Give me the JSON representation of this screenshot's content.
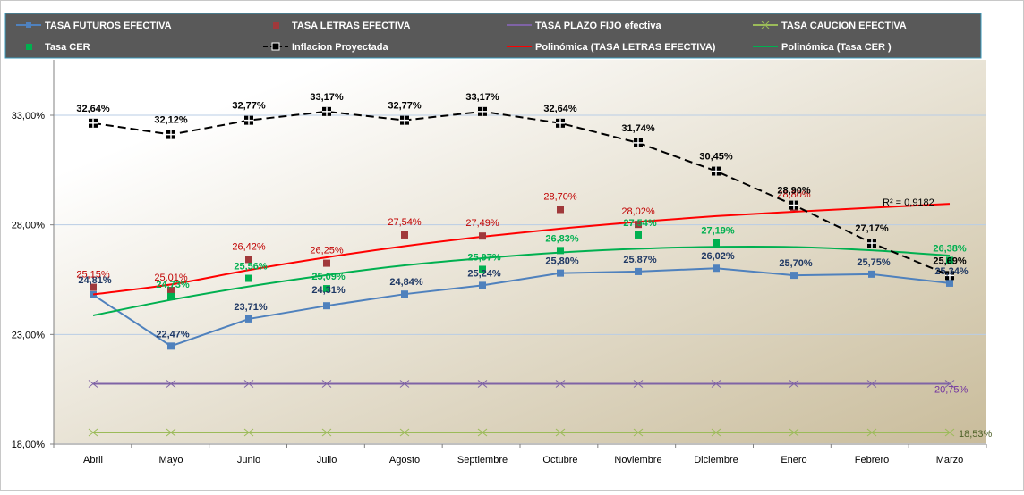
{
  "colors": {
    "futuros": "#4f81bd",
    "letras": "#a0393b",
    "plazo": "#7f63a6",
    "caucion": "#9bbb59",
    "cer": "#00b050",
    "inflacion": "#000000",
    "poly_letras": "#ff0000",
    "poly_cer": "#00b050",
    "label_futuros": "#1f3864",
    "label_letras": "#c00000",
    "label_cer": "#00b050",
    "label_plazo": "#7030a0",
    "label_caucion": "#4f6228",
    "legend_bg": "#595959",
    "plot_bg_light": "#ffffff",
    "plot_bg_dark": "#c9bc9b"
  },
  "chart_data": {
    "type": "line",
    "title": "",
    "xlabel": "",
    "ylabel": "",
    "categories": [
      "Abril",
      "Mayo",
      "Junio",
      "Julio",
      "Agosto",
      "Septiembre",
      "Octubre",
      "Noviembre",
      "Diciembre",
      "Enero",
      "Febrero",
      "Marzo"
    ],
    "y_ticks": [
      "33,00%",
      "28,00%",
      "23,00%",
      "18,00%"
    ],
    "ylim": [
      18,
      35
    ],
    "grid": true,
    "legend_position": "top",
    "r2_label": "R² = 0,9182",
    "legend": [
      {
        "key": "futuros",
        "label": "TASA  FUTUROS EFECTIVA"
      },
      {
        "key": "letras",
        "label": "TASA LETRAS EFECTIVA"
      },
      {
        "key": "plazo",
        "label": "TASA PLAZO FIJO efectiva"
      },
      {
        "key": "caucion",
        "label": "TASA CAUCION EFECTIVA"
      },
      {
        "key": "cer",
        "label": "Tasa CER"
      },
      {
        "key": "inflacion",
        "label": "Inflacion Proyectada"
      },
      {
        "key": "poly_letras",
        "label": "Polinómica (TASA LETRAS EFECTIVA)"
      },
      {
        "key": "poly_cer",
        "label": "Polinómica (Tasa CER )"
      }
    ],
    "series": [
      {
        "key": "futuros",
        "name": "TASA  FUTUROS EFECTIVA",
        "values": [
          24.81,
          22.47,
          23.71,
          24.31,
          24.84,
          25.24,
          25.8,
          25.87,
          26.02,
          25.7,
          25.75,
          25.34
        ],
        "labels": [
          "24,81%",
          "22,47%",
          "23,71%",
          "24,31%",
          "24,84%",
          "25,24%",
          "25,80%",
          "25,87%",
          "26,02%",
          "25,70%",
          "25,75%",
          "25,34%"
        ]
      },
      {
        "key": "letras",
        "name": "TASA LETRAS EFECTIVA",
        "values": [
          25.15,
          25.01,
          26.42,
          26.25,
          27.54,
          27.49,
          28.7,
          28.02,
          null,
          28.8,
          null,
          null
        ],
        "labels": [
          "25,15%",
          "25,01%",
          "26,42%",
          "26,25%",
          "27,54%",
          "27,49%",
          "28,70%",
          "28,02%",
          null,
          "28,80%",
          null,
          null
        ]
      },
      {
        "key": "cer",
        "name": "Tasa CER",
        "values": [
          null,
          24.73,
          25.56,
          25.09,
          null,
          25.97,
          26.83,
          27.54,
          27.19,
          null,
          null,
          26.38
        ],
        "labels": [
          null,
          "24,73%",
          "25,56%",
          "25,09%",
          null,
          "25,97%",
          "26,83%",
          "27,54%",
          "27,19%",
          null,
          null,
          "26,38%"
        ]
      },
      {
        "key": "inflacion",
        "name": "Inflacion Proyectada",
        "values": [
          32.64,
          32.12,
          32.77,
          33.17,
          32.77,
          33.17,
          32.64,
          31.74,
          30.45,
          28.9,
          27.17,
          25.69
        ],
        "labels": [
          "32,64%",
          "32,12%",
          "32,77%",
          "33,17%",
          "32,77%",
          "33,17%",
          "32,64%",
          "31,74%",
          "30,45%",
          "28,90%",
          "27,17%",
          "25,69%"
        ]
      },
      {
        "key": "plazo",
        "name": "TASA PLAZO FIJO efectiva",
        "values": [
          20.75,
          20.75,
          20.75,
          20.75,
          20.75,
          20.75,
          20.75,
          20.75,
          20.75,
          20.75,
          20.75,
          20.75
        ],
        "end_label": "20,75%"
      },
      {
        "key": "caucion",
        "name": "TASA CAUCION EFECTIVA",
        "values": [
          18.53,
          18.53,
          18.53,
          18.53,
          18.53,
          18.53,
          18.53,
          18.53,
          18.53,
          18.53,
          18.53,
          18.53
        ],
        "end_label": "18,53%"
      },
      {
        "key": "poly_letras",
        "name": "Polinómica (TASA LETRAS EFECTIVA)",
        "values": [
          24.83,
          25.28,
          25.94,
          26.52,
          27.03,
          27.46,
          27.83,
          28.14,
          28.4,
          28.6,
          28.78,
          28.96
        ]
      },
      {
        "key": "poly_cer",
        "name": "Polinómica (Tasa CER )",
        "values": [
          23.87,
          24.58,
          25.19,
          25.71,
          26.15,
          26.48,
          26.74,
          26.91,
          27.0,
          26.99,
          26.84,
          26.6
        ]
      }
    ]
  }
}
